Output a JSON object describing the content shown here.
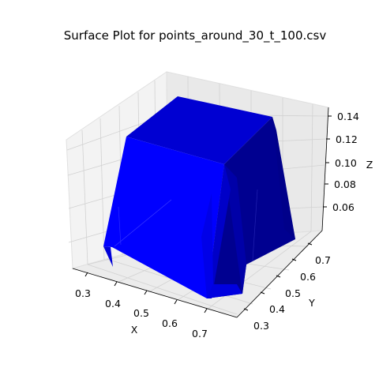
{
  "chart_data": {
    "type": "surface",
    "title": "Surface Plot for points_around_30_t_100.csv",
    "xlabel": "X",
    "ylabel": "Y",
    "zlabel": "Z",
    "xlim": [
      0.25,
      0.75
    ],
    "ylim": [
      0.25,
      0.75
    ],
    "zlim": [
      0.045,
      0.145
    ],
    "xticks": [
      "0.3",
      "0.4",
      "0.5",
      "0.6",
      "0.7"
    ],
    "yticks": [
      "0.3",
      "0.4",
      "0.5",
      "0.6",
      "0.7"
    ],
    "zticks": [
      "0.06",
      "0.08",
      "0.10",
      "0.12",
      "0.14"
    ],
    "grid": true,
    "surface_color": "#0000ff",
    "plateau_z": 0.14,
    "plateau_x": [
      0.35,
      0.65
    ],
    "plateau_y": [
      0.35,
      0.65
    ],
    "corner_min_z": 0.05
  }
}
